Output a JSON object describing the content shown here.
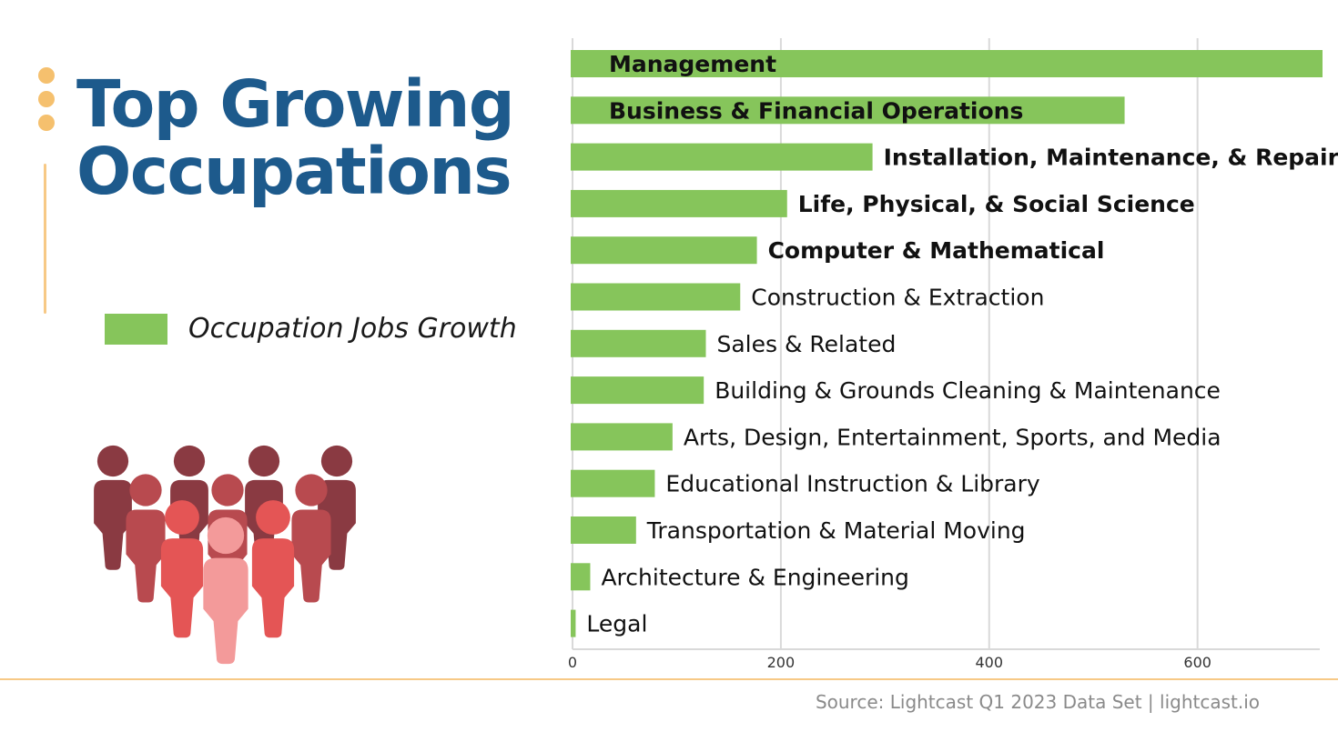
{
  "title_lines": [
    "Top Growing",
    "Occupations"
  ],
  "source": "Source: Lightcast Q1 2023 Data Set | lightcast.io",
  "chart_data": {
    "type": "bar",
    "orientation": "horizontal",
    "title": "Top Growing Occupations",
    "xlabel": "",
    "ylabel": "",
    "xlim": [
      0,
      720
    ],
    "xticks": [
      0,
      200,
      400,
      600
    ],
    "grid": true,
    "legend": "left",
    "series": [
      {
        "name": "Occupation Jobs Growth",
        "color": "#86c55b",
        "values": [
          720,
          530,
          288,
          206,
          177,
          161,
          128,
          126,
          96,
          79,
          61,
          17,
          3
        ]
      }
    ],
    "categories": [
      "Management",
      "Business & Financial Operations",
      "Installation, Maintenance, & Repair",
      "Life, Physical, & Social Science",
      "Computer & Mathematical",
      "Construction & Extraction",
      "Sales & Related",
      "Building & Grounds Cleaning & Maintenance",
      "Arts, Design, Entertainment, Sports, and Media",
      "Educational Instruction & Library",
      "Transportation & Material Moving",
      "Architecture & Engineering",
      "Legal"
    ],
    "label_placement": [
      "inside",
      "inside",
      "outside",
      "outside",
      "outside",
      "outside",
      "outside",
      "outside",
      "outside",
      "outside",
      "outside",
      "outside",
      "outside"
    ],
    "bold_labels": [
      true,
      true,
      true,
      true,
      true,
      false,
      false,
      false,
      false,
      false,
      false,
      false,
      false
    ]
  },
  "colors": {
    "title": "#1d5a8c",
    "bar": "#86c55b",
    "accent": "#f5c06e",
    "grid": "#d9d9d9",
    "people": [
      "#8a3a42",
      "#b84a4f",
      "#e45555",
      "#f39a9a"
    ]
  }
}
